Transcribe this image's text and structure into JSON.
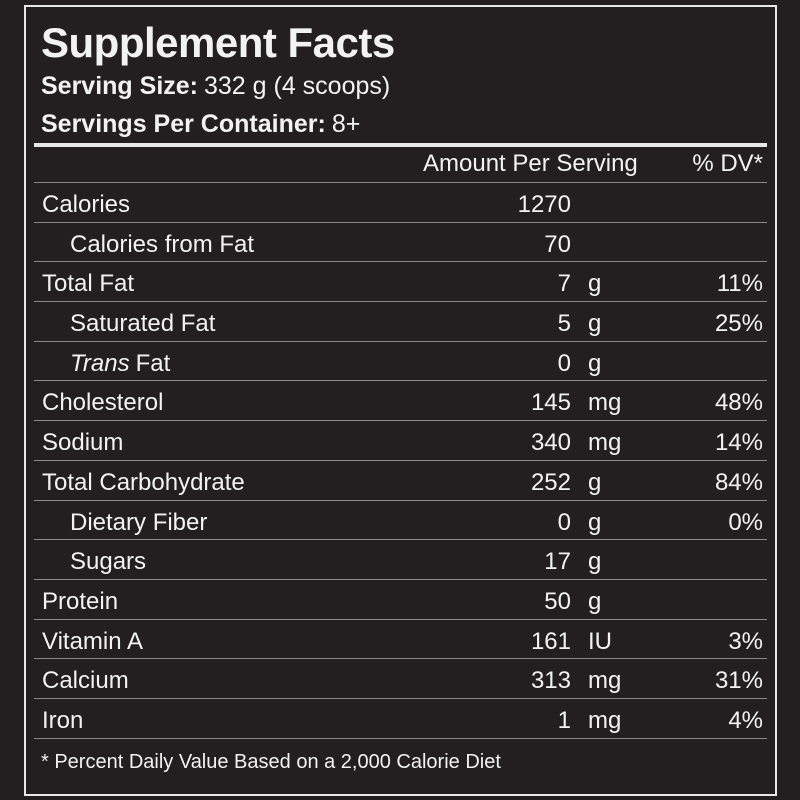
{
  "header": {
    "title": "Supplement Facts",
    "serving_size_label": "Serving Size:",
    "serving_size": "332 g (4 scoops)",
    "servings_label": "Servings Per Container:",
    "servings": "8+"
  },
  "table": {
    "columns": {
      "amount": "Amount Per Serving",
      "dv": "% DV*"
    },
    "rows": [
      {
        "label": "Calories",
        "amount": "1270"
      },
      {
        "label": "Calories from Fat",
        "amount": "70",
        "indent": true
      },
      {
        "label": "Total Fat",
        "amount": "7",
        "unit": "g",
        "dv": "11%"
      },
      {
        "label": "Saturated Fat",
        "amount": "5",
        "unit": "g",
        "dv": "25%",
        "indent": true
      },
      {
        "label_italic": "Trans",
        "label": "Fat",
        "amount": "0",
        "unit": "g",
        "indent": true
      },
      {
        "label": "Cholesterol",
        "amount": "145",
        "unit": "mg",
        "dv": "48%"
      },
      {
        "label": "Sodium",
        "amount": "340",
        "unit": "mg",
        "dv": "14%"
      },
      {
        "label": "Total Carbohydrate",
        "amount": "252",
        "unit": "g",
        "dv": "84%"
      },
      {
        "label": "Dietary Fiber",
        "amount": "0",
        "unit": "g",
        "dv": "0%",
        "indent": true
      },
      {
        "label": "Sugars",
        "amount": "17",
        "unit": "g",
        "indent": true
      },
      {
        "label": "Protein",
        "amount": "50",
        "unit": "g"
      },
      {
        "label": "Vitamin A",
        "amount": "161",
        "unit": "IU",
        "dv": "3%"
      },
      {
        "label": "Calcium",
        "amount": "313",
        "unit": "mg",
        "dv": "31%"
      },
      {
        "label": "Iron",
        "amount": "1",
        "unit": "mg",
        "dv": "4%"
      }
    ]
  },
  "footnote": "* Percent Daily Value Based on a 2,000 Calorie Diet"
}
